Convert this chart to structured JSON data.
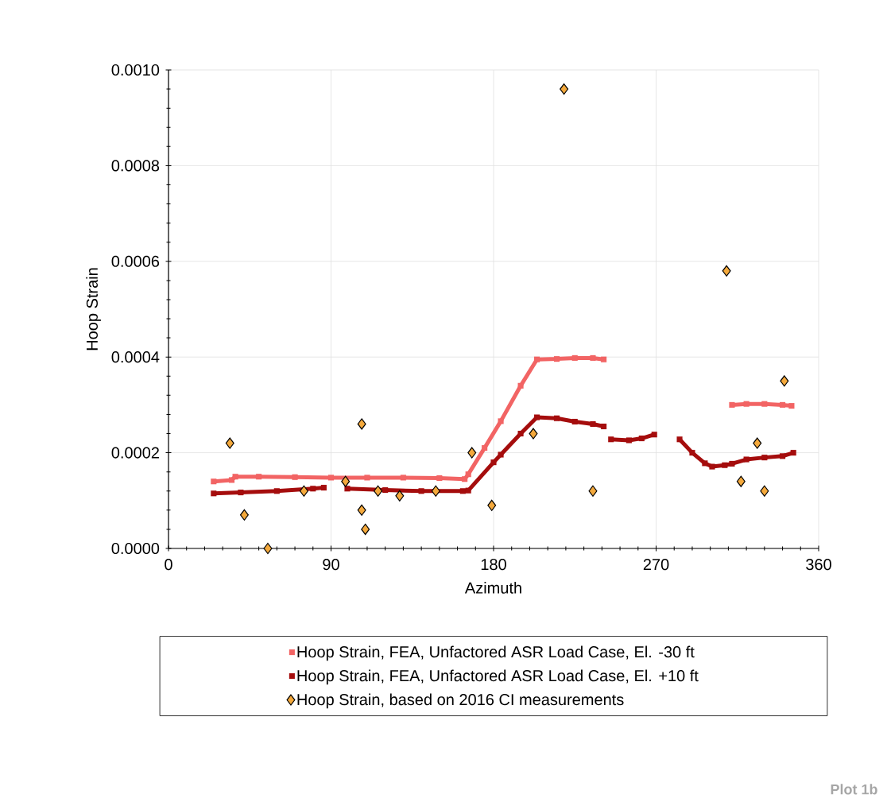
{
  "chart_data": {
    "type": "line",
    "xlabel": "Azimuth",
    "ylabel": "Hoop Strain",
    "xlim": [
      0,
      360
    ],
    "xticks": [
      0,
      90,
      180,
      270,
      360
    ],
    "ylim": [
      0,
      0.001
    ],
    "yticks": [
      {
        "value": 0,
        "label": "0.0000"
      },
      {
        "value": 0.0002,
        "label": "0.0002"
      },
      {
        "value": 0.0004,
        "label": "0.0004"
      },
      {
        "value": 0.0006,
        "label": "0.0006"
      },
      {
        "value": 0.0008,
        "label": "0.0008"
      },
      {
        "value": 0.001,
        "label": "0.0010"
      }
    ],
    "grid": true,
    "legend": "bottom",
    "marker": "square",
    "annotations": [
      "Plot 1b"
    ],
    "series": [
      {
        "name": "Hoop Strain, FEA, Unfactored ASR Load Case, El. -30 ft",
        "color": "#f26464",
        "x": [
          25,
          35,
          37,
          50,
          70,
          90,
          110,
          130,
          150,
          164,
          166,
          175,
          184,
          195,
          204,
          215,
          225,
          235,
          241,
          276,
          312,
          320,
          330,
          340,
          345
        ],
        "values": [
          0.00014,
          0.000143,
          0.00015,
          0.00015,
          0.000149,
          0.000148,
          0.000148,
          0.000148,
          0.000147,
          0.000145,
          0.000155,
          0.00021,
          0.000266,
          0.00034,
          0.000395,
          0.000396,
          0.000398,
          0.000398,
          0.000395,
          null,
          0.0003,
          0.000302,
          0.000302,
          0.0003,
          0.000298
        ]
      },
      {
        "name": "Hoop Strain, FEA, Unfactored ASR Load Case, El. +10 ft",
        "color": "#a50d0d",
        "x": [
          25,
          40,
          60,
          80,
          86,
          92,
          99,
          120,
          140,
          163,
          166,
          180,
          184,
          195,
          204,
          215,
          225,
          235,
          241,
          243,
          245,
          255,
          262,
          269,
          276,
          283,
          290,
          297,
          301,
          308,
          312,
          320,
          330,
          340,
          346
        ],
        "values": [
          0.000115,
          0.000117,
          0.00012,
          0.000125,
          0.000127,
          null,
          0.000125,
          0.000122,
          0.00012,
          0.00012,
          0.000121,
          0.00018,
          0.000196,
          0.00024,
          0.000274,
          0.000272,
          0.000265,
          0.00026,
          0.000255,
          null,
          0.000228,
          0.000226,
          0.00023,
          0.000238,
          null,
          0.000228,
          0.0002,
          0.000178,
          0.000171,
          0.000174,
          0.000177,
          0.000186,
          0.00019,
          0.000193,
          0.0002
        ]
      },
      {
        "name": "Hoop Strain, based on 2016 CI measurements",
        "type": "scatter",
        "marker": "diamond",
        "color": "#f4a93c",
        "x": [
          34,
          42,
          55,
          75,
          98,
          107,
          107,
          109,
          116,
          128,
          148,
          168,
          179,
          202,
          219,
          235,
          309,
          317,
          326,
          330,
          341
        ],
        "values": [
          0.00022,
          7e-05,
          0,
          0.00012,
          0.00014,
          0.00026,
          8e-05,
          4e-05,
          0.00012,
          0.00011,
          0.00012,
          0.0002,
          9e-05,
          0.00024,
          0.00096,
          0.00012,
          0.00058,
          0.00014,
          0.00022,
          0.00012,
          0.00035
        ]
      }
    ]
  }
}
